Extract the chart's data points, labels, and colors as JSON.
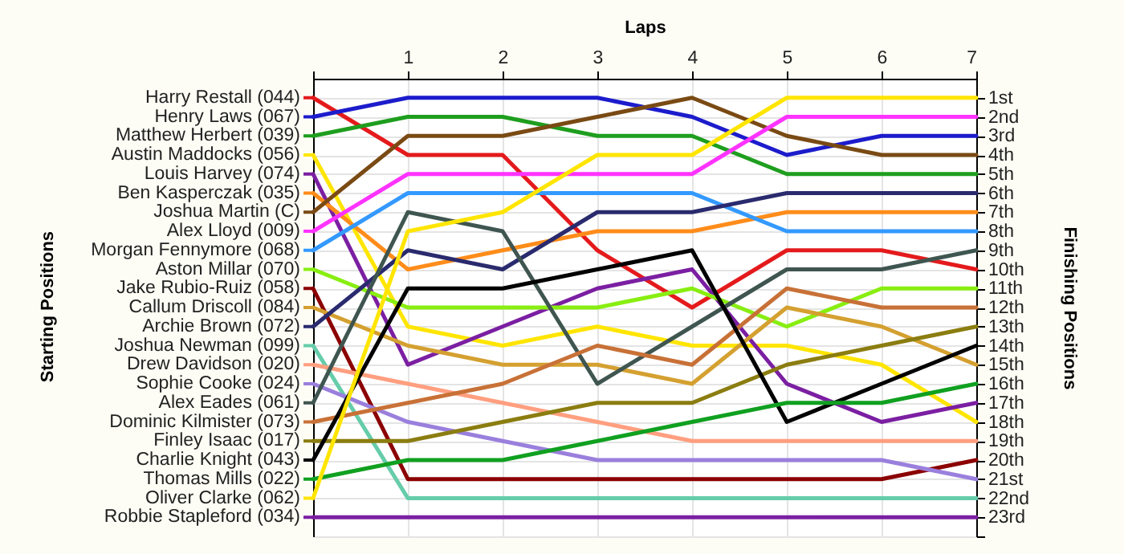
{
  "chart_data": {
    "type": "line",
    "xlabel": "Laps",
    "ylabel": "Finishing Positions",
    "annotations": [
      "Starting Positions"
    ],
    "legend": "left",
    "x": [
      0,
      1,
      2,
      3,
      4,
      5,
      6,
      7
    ],
    "xlim": [
      0,
      7
    ],
    "xticks": [
      {
        "value": 0,
        "label": null
      },
      1,
      2,
      3,
      4,
      5,
      6,
      7
    ],
    "ylim": [
      24,
      0
    ],
    "yticks": [
      {
        "value": 1,
        "label": "1st"
      },
      {
        "value": 2,
        "label": "2nd"
      },
      {
        "value": 3,
        "label": "3rd"
      },
      {
        "value": 4,
        "label": "4th"
      },
      {
        "value": 5,
        "label": "5th"
      },
      {
        "value": 6,
        "label": "6th"
      },
      {
        "value": 7,
        "label": "7th"
      },
      {
        "value": 8,
        "label": "8th"
      },
      {
        "value": 9,
        "label": "9th"
      },
      {
        "value": 10,
        "label": "10th"
      },
      {
        "value": 11,
        "label": "11th"
      },
      {
        "value": 12,
        "label": "12th"
      },
      {
        "value": 13,
        "label": "13th"
      },
      {
        "value": 14,
        "label": "14th"
      },
      {
        "value": 15,
        "label": "15th"
      },
      {
        "value": 16,
        "label": "16th"
      },
      {
        "value": 17,
        "label": "17th"
      },
      {
        "value": 18,
        "label": "18th"
      },
      {
        "value": 19,
        "label": "19th"
      },
      {
        "value": 20,
        "label": "20th"
      },
      {
        "value": 21,
        "label": "21st"
      },
      {
        "value": 22,
        "label": "22nd"
      },
      {
        "value": 23,
        "label": "23rd"
      },
      {
        "value": 24,
        "label": null
      }
    ],
    "grid": true,
    "marker": "none",
    "line_style": "solid",
    "series": [
      {
        "name": "Harry Restall (044)",
        "color": "#e41a1c",
        "values": [
          1,
          4,
          4,
          9,
          12,
          9,
          9,
          10
        ]
      },
      {
        "name": "Henry Laws (067)",
        "color": "#1c1ccc",
        "values": [
          2,
          1,
          1,
          1,
          2,
          4,
          3,
          3
        ]
      },
      {
        "name": "Matthew Herbert (039)",
        "color": "#1e9e1e",
        "values": [
          3,
          2,
          2,
          3,
          3,
          5,
          5,
          5
        ]
      },
      {
        "name": "Austin Maddocks (056)",
        "color": "#ffe500",
        "values": [
          4,
          13,
          14,
          13,
          14,
          14,
          15,
          18
        ]
      },
      {
        "name": "Louis Harvey (074)",
        "color": "#7b1fa2",
        "values": [
          5,
          15,
          13,
          11,
          10,
          16,
          18,
          17
        ]
      },
      {
        "name": "Ben Kasperczak (035)",
        "color": "#ff8c1a",
        "values": [
          6,
          10,
          9,
          8,
          8,
          7,
          7,
          7
        ]
      },
      {
        "name": "Joshua Martin (C)",
        "color": "#7a4a14",
        "values": [
          7,
          3,
          3,
          2,
          1,
          3,
          4,
          4
        ]
      },
      {
        "name": "Alex Lloyd (009)",
        "color": "#ff33ff",
        "values": [
          8,
          5,
          5,
          5,
          5,
          2,
          2,
          2
        ]
      },
      {
        "name": "Morgan Fennymore (068)",
        "color": "#3399ff",
        "values": [
          9,
          6,
          6,
          6,
          6,
          8,
          8,
          8
        ]
      },
      {
        "name": "Aston Millar (070)",
        "color": "#88ee11",
        "values": [
          10,
          12,
          12,
          12,
          11,
          13,
          11,
          11
        ]
      },
      {
        "name": "Jake Rubio-Ruiz (058)",
        "color": "#8b0000",
        "values": [
          11,
          21,
          21,
          21,
          21,
          21,
          21,
          20
        ]
      },
      {
        "name": "Callum Driscoll (084)",
        "color": "#d4a030",
        "values": [
          12,
          14,
          15,
          15,
          16,
          12,
          13,
          15
        ]
      },
      {
        "name": "Archie Brown (072)",
        "color": "#2a2a6e",
        "values": [
          13,
          9,
          10,
          7,
          7,
          6,
          6,
          6
        ]
      },
      {
        "name": "Joshua Newman (099)",
        "color": "#66ccaa",
        "values": [
          14,
          22,
          22,
          22,
          22,
          22,
          22,
          22
        ]
      },
      {
        "name": "Drew Davidson (020)",
        "color": "#ff9f80",
        "values": [
          15,
          16,
          17,
          18,
          19,
          19,
          19,
          19
        ]
      },
      {
        "name": "Sophie Cooke (024)",
        "color": "#9a7fdd",
        "values": [
          16,
          18,
          19,
          20,
          20,
          20,
          20,
          21
        ]
      },
      {
        "name": "Alex Eades (061)",
        "color": "#3f5550",
        "values": [
          17,
          7,
          8,
          16,
          13,
          10,
          10,
          9
        ]
      },
      {
        "name": "Dominic Kilmister (073)",
        "color": "#c87137",
        "values": [
          18,
          17,
          16,
          14,
          15,
          11,
          12,
          12
        ]
      },
      {
        "name": "Finley Isaac (017)",
        "color": "#8b7d10",
        "values": [
          19,
          19,
          18,
          17,
          17,
          15,
          14,
          13
        ]
      },
      {
        "name": "Charlie Knight (043)",
        "color": "#000000",
        "values": [
          20,
          11,
          11,
          10,
          9,
          18,
          16,
          14
        ]
      },
      {
        "name": "Thomas Mills (022)",
        "color": "#10a020",
        "values": [
          21,
          20,
          20,
          19,
          18,
          17,
          17,
          16
        ]
      },
      {
        "name": "Oliver Clarke (062)",
        "color": "#ffe500",
        "values": [
          22,
          8,
          7,
          4,
          4,
          1,
          1,
          1
        ]
      },
      {
        "name": "Robbie Stapleford (034)",
        "color": "#7b1fa2",
        "values": [
          23,
          23,
          23,
          23,
          23,
          23,
          23,
          23
        ]
      }
    ]
  }
}
